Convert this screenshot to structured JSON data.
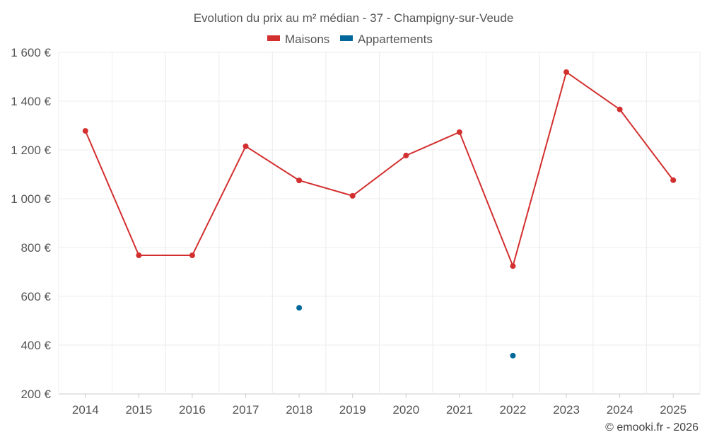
{
  "chart_data": {
    "type": "line",
    "title": "Evolution du prix au m² médian - 37 - Champigny-sur-Veude",
    "categories": [
      "2014",
      "2015",
      "2016",
      "2017",
      "2018",
      "2019",
      "2020",
      "2021",
      "2022",
      "2023",
      "2024",
      "2025"
    ],
    "series": [
      {
        "name": "Maisons",
        "color": "#d32f2f",
        "values": [
          1278,
          768,
          768,
          1215,
          1075,
          1012,
          1177,
          1273,
          724,
          1519,
          1366,
          1076
        ]
      },
      {
        "name": "Appartements",
        "color": "#00679a",
        "values": [
          null,
          null,
          null,
          null,
          553,
          null,
          null,
          null,
          357,
          null,
          null,
          null
        ]
      }
    ],
    "ylim": [
      200,
      1600
    ],
    "yticks": [
      200,
      400,
      600,
      800,
      1000,
      1200,
      1400,
      1600
    ],
    "ytick_labels": [
      "200 €",
      "400 €",
      "600 €",
      "800 €",
      "1 000 €",
      "1 200 €",
      "1 400 €",
      "1 600 €"
    ],
    "grid": true,
    "legend_position": "top-center"
  },
  "credit": "© emooki.fr - 2026"
}
